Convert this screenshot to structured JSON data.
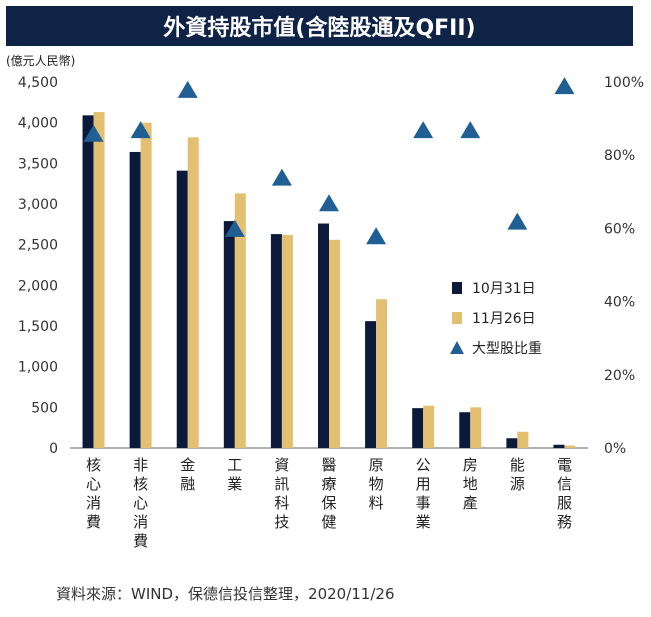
{
  "chart_data": {
    "type": "bar",
    "title": "外資持股市值(含陸股通及QFII)",
    "y_unit": "(億元人民幣)",
    "categories": [
      "核心消費",
      "非核心消費",
      "金融",
      "工業",
      "資訊科技",
      "醫療保健",
      "原物料",
      "公用事業",
      "房地產",
      "能源",
      "電信服務"
    ],
    "series": [
      {
        "name": "10月31日",
        "color": "#0b1a3a",
        "axis": "left",
        "values": [
          4090,
          3640,
          3410,
          2790,
          2630,
          2760,
          1560,
          490,
          440,
          120,
          40
        ]
      },
      {
        "name": "11月26日",
        "color": "#e3bf72",
        "axis": "left",
        "values": [
          4130,
          4000,
          3820,
          3130,
          2620,
          2560,
          1830,
          520,
          500,
          200,
          30
        ]
      },
      {
        "name": "大型股比重",
        "color": "#1f5f94",
        "axis": "right",
        "marker": "triangle",
        "values": [
          86,
          87,
          98,
          60,
          74,
          67,
          58,
          87,
          87,
          62,
          99
        ]
      }
    ],
    "ylim": [
      0,
      4500
    ],
    "yticks": [
      "0",
      "500",
      "1,000",
      "1,500",
      "2,000",
      "2,500",
      "3,000",
      "3,500",
      "4,000",
      "4,500"
    ],
    "y2lim": [
      0,
      100
    ],
    "y2ticks": [
      "0%",
      "20%",
      "40%",
      "60%",
      "80%",
      "100%"
    ],
    "legend_position": "right-middle",
    "grid": false
  },
  "source": "資料來源：WIND，保德信投信整理，2020/11/26"
}
